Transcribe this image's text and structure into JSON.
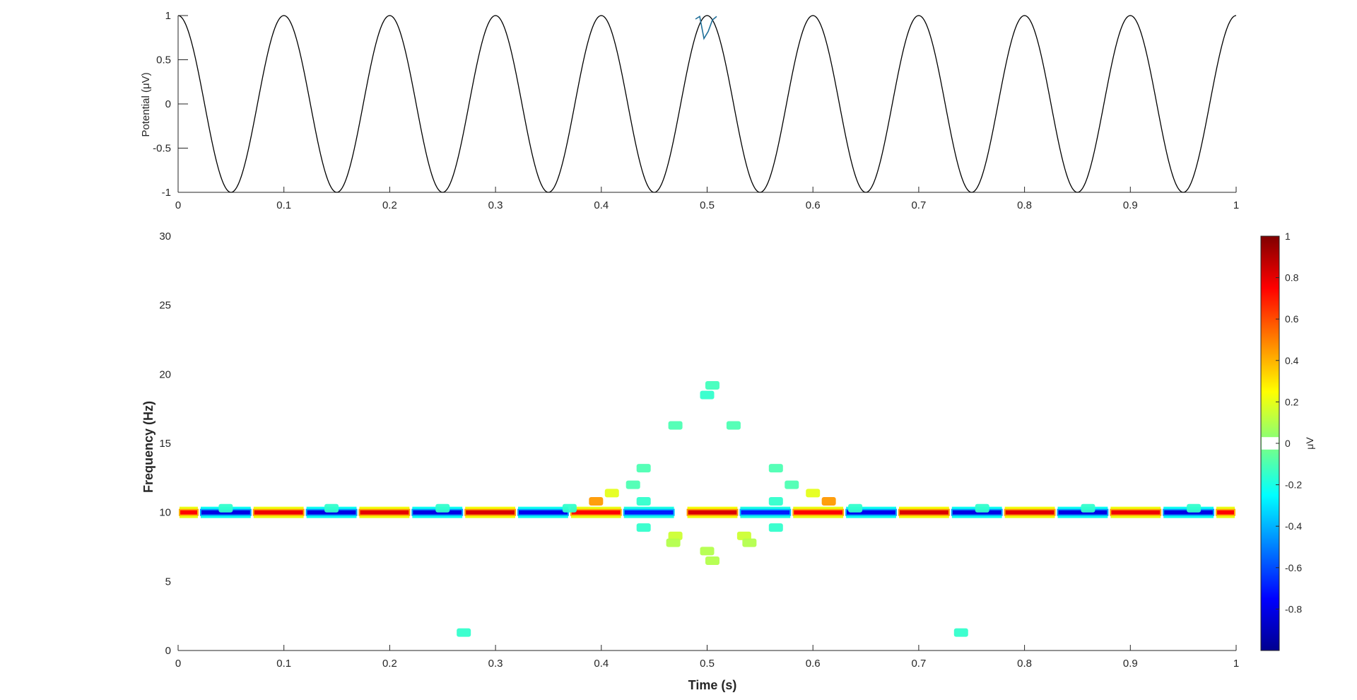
{
  "chart_data": [
    {
      "type": "line",
      "ylabel": "Potential (μV)",
      "xlabel": "",
      "xlim": [
        0,
        1
      ],
      "ylim": [
        -1,
        1
      ],
      "xticks": [
        "0",
        "0.1",
        "0.2",
        "0.3",
        "0.4",
        "0.5",
        "0.6",
        "0.7",
        "0.8",
        "0.9",
        "1"
      ],
      "yticks": [
        "-1",
        "-0.5",
        "0",
        "0.5",
        "1"
      ],
      "series": [
        {
          "frequency_hz": 10,
          "amplitude": 1,
          "phase": "cosine",
          "color": "#000000",
          "transient": {
            "t": [
              0.489,
              0.493,
              0.497,
              0.501,
              0.505,
              0.509
            ],
            "y": [
              0.96,
              0.99,
              0.74,
              0.82,
              0.95,
              0.99
            ]
          }
        }
      ]
    },
    {
      "type": "heatmap",
      "title": "",
      "xlabel": "Time (s)",
      "ylabel": "Frequency (Hz)",
      "xlim": [
        0,
        1
      ],
      "ylim": [
        0,
        30
      ],
      "xticks": [
        "0",
        "0.1",
        "0.2",
        "0.3",
        "0.4",
        "0.5",
        "0.6",
        "0.7",
        "0.8",
        "0.9",
        "1"
      ],
      "yticks": [
        "0",
        "5",
        "10",
        "15",
        "20",
        "25",
        "30"
      ],
      "colormap": "jet",
      "clim": [
        -1,
        1
      ],
      "colorbar": {
        "label": "μV",
        "ticks": [
          "-0.8",
          "-0.6",
          "-0.4",
          "-0.2",
          "0",
          "0.2",
          "0.4",
          "0.6",
          "0.8",
          "1"
        ],
        "blank_band": [
          -0.03,
          0.03
        ]
      },
      "band": {
        "freq_hz": 10,
        "segments": [
          {
            "t0": 0.0,
            "t1": 0.02,
            "v": 0.75
          },
          {
            "t0": 0.02,
            "t1": 0.07,
            "v": -0.8
          },
          {
            "t0": 0.07,
            "t1": 0.12,
            "v": 0.78
          },
          {
            "t0": 0.12,
            "t1": 0.17,
            "v": -0.8
          },
          {
            "t0": 0.17,
            "t1": 0.22,
            "v": 0.8
          },
          {
            "t0": 0.22,
            "t1": 0.27,
            "v": -0.8
          },
          {
            "t0": 0.27,
            "t1": 0.32,
            "v": 0.82
          },
          {
            "t0": 0.32,
            "t1": 0.37,
            "v": -0.78
          },
          {
            "t0": 0.37,
            "t1": 0.42,
            "v": 0.75
          },
          {
            "t0": 0.42,
            "t1": 0.47,
            "v": -0.7
          },
          {
            "t0": 0.48,
            "t1": 0.53,
            "v": 0.82
          },
          {
            "t0": 0.53,
            "t1": 0.58,
            "v": -0.7
          },
          {
            "t0": 0.58,
            "t1": 0.63,
            "v": 0.75
          },
          {
            "t0": 0.63,
            "t1": 0.68,
            "v": -0.78
          },
          {
            "t0": 0.68,
            "t1": 0.73,
            "v": 0.82
          },
          {
            "t0": 0.73,
            "t1": 0.78,
            "v": -0.8
          },
          {
            "t0": 0.78,
            "t1": 0.83,
            "v": 0.8
          },
          {
            "t0": 0.83,
            "t1": 0.88,
            "v": -0.8
          },
          {
            "t0": 0.88,
            "t1": 0.93,
            "v": 0.78
          },
          {
            "t0": 0.93,
            "t1": 0.98,
            "v": -0.8
          },
          {
            "t0": 0.98,
            "t1": 1.0,
            "v": 0.75
          }
        ]
      },
      "patches": [
        {
          "t": 0.5,
          "f": 18.5,
          "v": -0.15
        },
        {
          "t": 0.505,
          "f": 19.2,
          "v": -0.12
        },
        {
          "t": 0.47,
          "f": 16.3,
          "v": -0.1
        },
        {
          "t": 0.525,
          "f": 16.3,
          "v": -0.1
        },
        {
          "t": 0.44,
          "f": 13.2,
          "v": -0.1
        },
        {
          "t": 0.565,
          "f": 13.2,
          "v": -0.1
        },
        {
          "t": 0.43,
          "f": 12.0,
          "v": -0.1
        },
        {
          "t": 0.58,
          "f": 12.0,
          "v": -0.1
        },
        {
          "t": 0.41,
          "f": 11.4,
          "v": 0.2
        },
        {
          "t": 0.6,
          "f": 11.4,
          "v": 0.2
        },
        {
          "t": 0.395,
          "f": 10.8,
          "v": 0.45
        },
        {
          "t": 0.615,
          "f": 10.8,
          "v": 0.45
        },
        {
          "t": 0.44,
          "f": 10.8,
          "v": -0.15
        },
        {
          "t": 0.565,
          "f": 10.8,
          "v": -0.15
        },
        {
          "t": 0.44,
          "f": 8.9,
          "v": -0.15
        },
        {
          "t": 0.565,
          "f": 8.9,
          "v": -0.15
        },
        {
          "t": 0.47,
          "f": 8.3,
          "v": 0.15
        },
        {
          "t": 0.535,
          "f": 8.3,
          "v": 0.15
        },
        {
          "t": 0.5,
          "f": 7.2,
          "v": 0.1
        },
        {
          "t": 0.505,
          "f": 6.5,
          "v": 0.1
        },
        {
          "t": 0.54,
          "f": 7.8,
          "v": 0.1
        },
        {
          "t": 0.468,
          "f": 7.8,
          "v": 0.1
        },
        {
          "t": 0.37,
          "f": 10.3,
          "v": -0.15
        },
        {
          "t": 0.64,
          "f": 10.3,
          "v": -0.15
        },
        {
          "t": 0.25,
          "f": 10.3,
          "v": -0.15
        },
        {
          "t": 0.76,
          "f": 10.3,
          "v": -0.15
        },
        {
          "t": 0.045,
          "f": 10.3,
          "v": -0.15
        },
        {
          "t": 0.145,
          "f": 10.3,
          "v": -0.15
        },
        {
          "t": 0.86,
          "f": 10.3,
          "v": -0.15
        },
        {
          "t": 0.96,
          "f": 10.3,
          "v": -0.15
        },
        {
          "t": 0.27,
          "f": 1.3,
          "v": -0.15
        },
        {
          "t": 0.74,
          "f": 1.3,
          "v": -0.15
        }
      ]
    }
  ]
}
